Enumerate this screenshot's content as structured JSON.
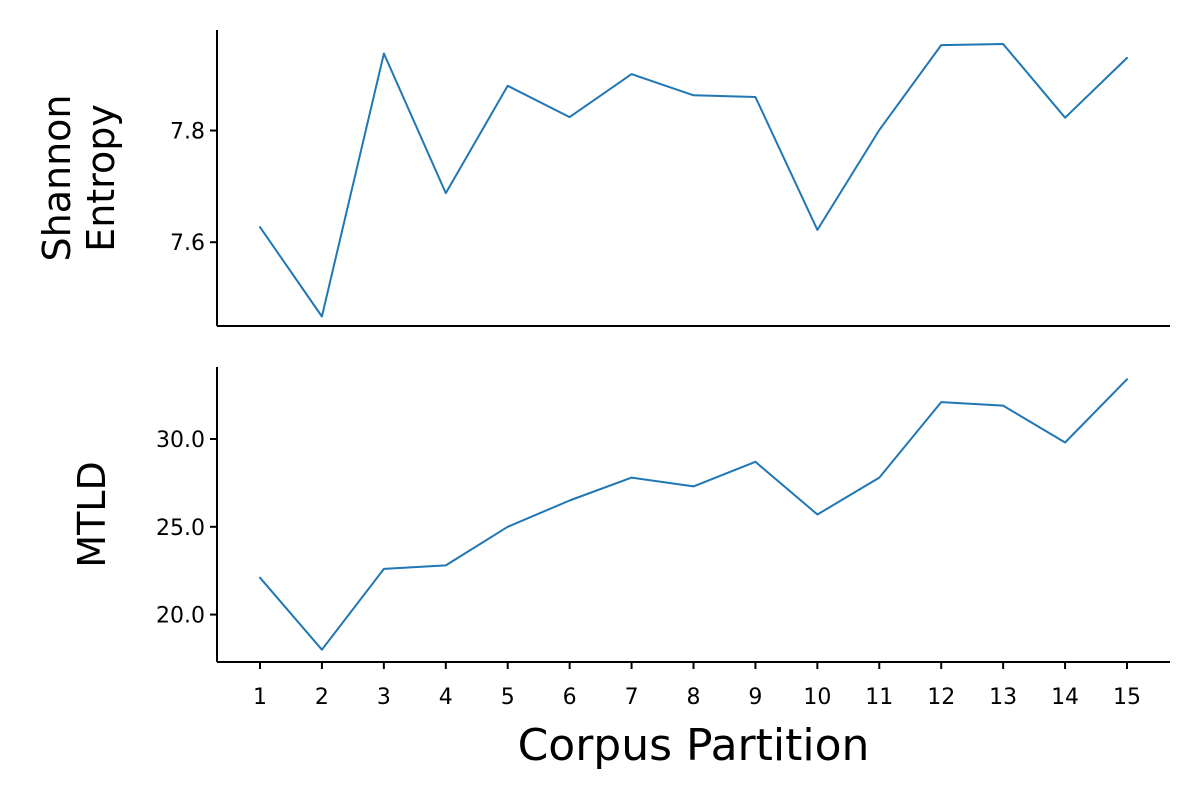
{
  "chart_data": {
    "type": "line",
    "xlabel": "Corpus Partition",
    "categories": [
      "1",
      "2",
      "3",
      "4",
      "5",
      "6",
      "7",
      "8",
      "9",
      "10",
      "11",
      "12",
      "13",
      "14",
      "15"
    ],
    "line_color": "#1f77b4",
    "subplots": [
      {
        "ylabel_lines": [
          "Shannon",
          "Entropy"
        ],
        "ylim": [
          7.45,
          7.98
        ],
        "yticks": [
          7.6,
          7.8
        ],
        "ytick_labels": [
          "7.6",
          "7.8"
        ],
        "values": [
          7.627,
          7.467,
          7.938,
          7.688,
          7.88,
          7.824,
          7.901,
          7.863,
          7.86,
          7.622,
          7.801,
          7.953,
          7.955,
          7.823,
          7.93
        ]
      },
      {
        "ylabel_lines": [
          "MTLD"
        ],
        "ylim": [
          17.3,
          34.1
        ],
        "yticks": [
          20,
          25,
          30
        ],
        "ytick_labels": [
          "20.0",
          "25.0",
          "30.0"
        ],
        "values": [
          22.1,
          18.0,
          22.6,
          22.8,
          25.0,
          26.5,
          27.8,
          27.3,
          28.7,
          25.7,
          27.8,
          32.1,
          31.9,
          29.8,
          33.4
        ]
      }
    ]
  }
}
